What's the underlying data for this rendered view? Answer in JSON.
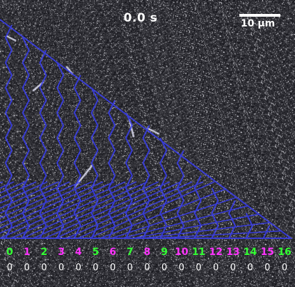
{
  "time_label": "0.0 s",
  "scale_bar": {
    "label": "10 µm"
  },
  "overlay_color": "#3a3ff0",
  "channels": [
    {
      "label": "0",
      "color": "#33ff33",
      "value": "0"
    },
    {
      "label": "1",
      "color": "#ff33ff",
      "value": "0"
    },
    {
      "label": "2",
      "color": "#33ff33",
      "value": "0"
    },
    {
      "label": "3",
      "color": "#ff33ff",
      "value": "0"
    },
    {
      "label": "4",
      "color": "#ff33ff",
      "value": "0"
    },
    {
      "label": "5",
      "color": "#33ff33",
      "value": "0"
    },
    {
      "label": "6",
      "color": "#ff33ff",
      "value": "0"
    },
    {
      "label": "7",
      "color": "#33ff33",
      "value": "0"
    },
    {
      "label": "8",
      "color": "#ff33ff",
      "value": "0"
    },
    {
      "label": "9",
      "color": "#33ff33",
      "value": "0"
    },
    {
      "label": "10",
      "color": "#ff33ff",
      "value": "0"
    },
    {
      "label": "11",
      "color": "#33ff33",
      "value": "0"
    },
    {
      "label": "12",
      "color": "#ff33ff",
      "value": "0"
    },
    {
      "label": "13",
      "color": "#ff33ff",
      "value": "0"
    },
    {
      "label": "14",
      "color": "#33ff33",
      "value": "0"
    },
    {
      "label": "15",
      "color": "#ff33ff",
      "value": "0"
    },
    {
      "label": "16",
      "color": "#33ff33",
      "value": "0"
    }
  ]
}
